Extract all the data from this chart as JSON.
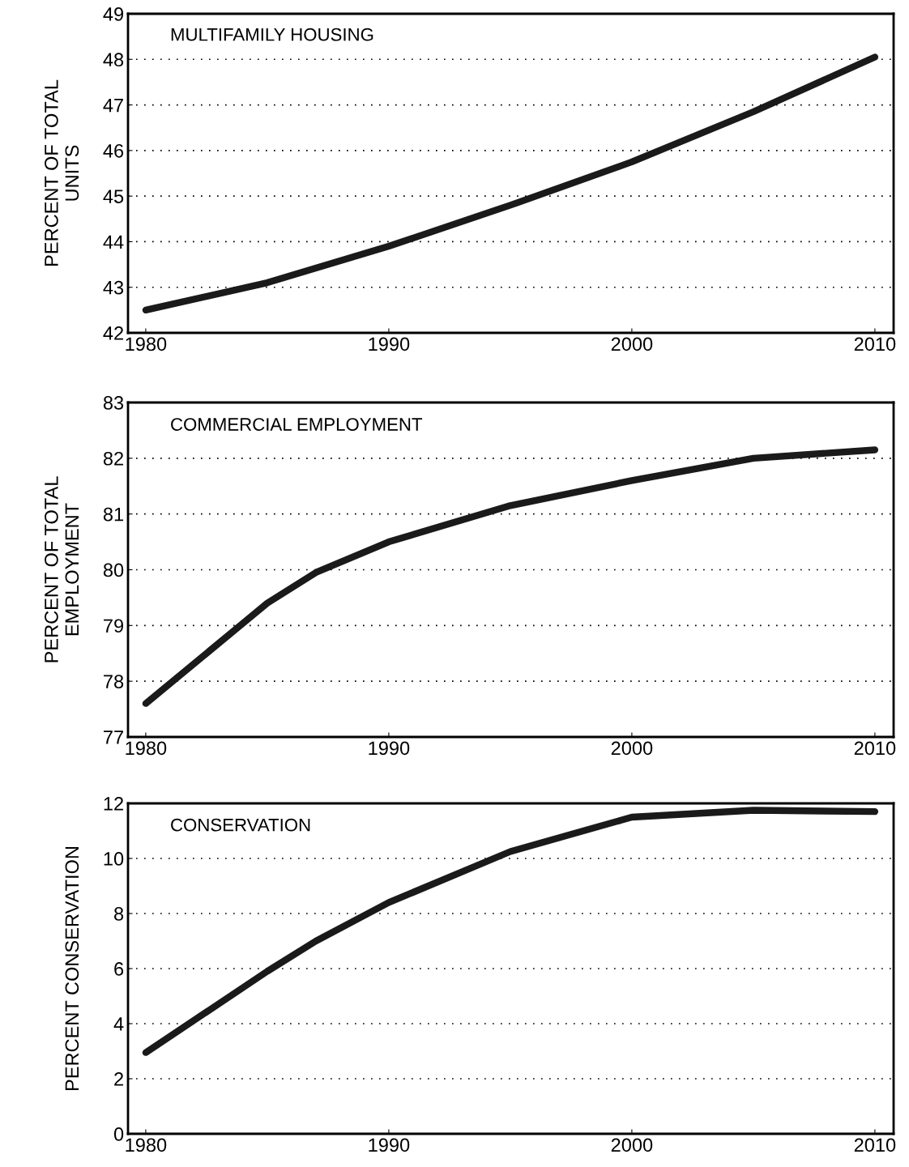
{
  "chart_data": [
    {
      "type": "line",
      "title": "MULTIFAMILY HOUSING",
      "ylabel": "PERCENT OF TOTAL\nUNITS",
      "x": [
        1980,
        1985,
        1990,
        1995,
        2000,
        2005,
        2010
      ],
      "series": [
        {
          "color": "#1a1a1a",
          "values": [
            42.5,
            43.1,
            43.9,
            44.8,
            45.75,
            46.85,
            48.05
          ]
        }
      ],
      "xlim": [
        1979.27,
        2010.77
      ],
      "xticks": [
        1980,
        1990,
        2000,
        2010
      ],
      "ylim": [
        42,
        49
      ],
      "yticks": [
        42,
        43,
        44,
        45,
        46,
        47,
        48,
        49
      ],
      "grid": "y",
      "line_style": "solid",
      "marker": "none",
      "legend": false
    },
    {
      "type": "line",
      "title": "COMMERCIAL EMPLOYMENT",
      "ylabel": "PERCENT OF TOTAL\nEMPLOYMENT",
      "x": [
        1980,
        1985,
        1987,
        1990,
        1995,
        2000,
        2005,
        2010
      ],
      "series": [
        {
          "color": "#1a1a1a",
          "values": [
            77.6,
            79.4,
            79.95,
            80.5,
            81.15,
            81.6,
            82.0,
            82.15
          ]
        }
      ],
      "xlim": [
        1979.27,
        2010.77
      ],
      "xticks": [
        1980,
        1990,
        2000,
        2010
      ],
      "ylim": [
        77,
        83
      ],
      "yticks": [
        77,
        78,
        79,
        80,
        81,
        82,
        83
      ],
      "grid": "y",
      "line_style": "solid",
      "marker": "none",
      "legend": false
    },
    {
      "type": "line",
      "title": "CONSERVATION",
      "ylabel": "PERCENT CONSERVATION",
      "x": [
        1980,
        1985,
        1987,
        1990,
        1995,
        2000,
        2005,
        2010
      ],
      "series": [
        {
          "color": "#1a1a1a",
          "values": [
            2.95,
            5.9,
            7.0,
            8.4,
            10.25,
            11.5,
            11.75,
            11.7
          ]
        }
      ],
      "xlim": [
        1979.27,
        2010.77
      ],
      "xticks": [
        1980,
        1990,
        2000,
        2010
      ],
      "ylim": [
        0,
        12
      ],
      "yticks": [
        0,
        2,
        4,
        6,
        8,
        10,
        12
      ],
      "grid": "y",
      "line_style": "solid",
      "marker": "none",
      "legend": false
    }
  ]
}
